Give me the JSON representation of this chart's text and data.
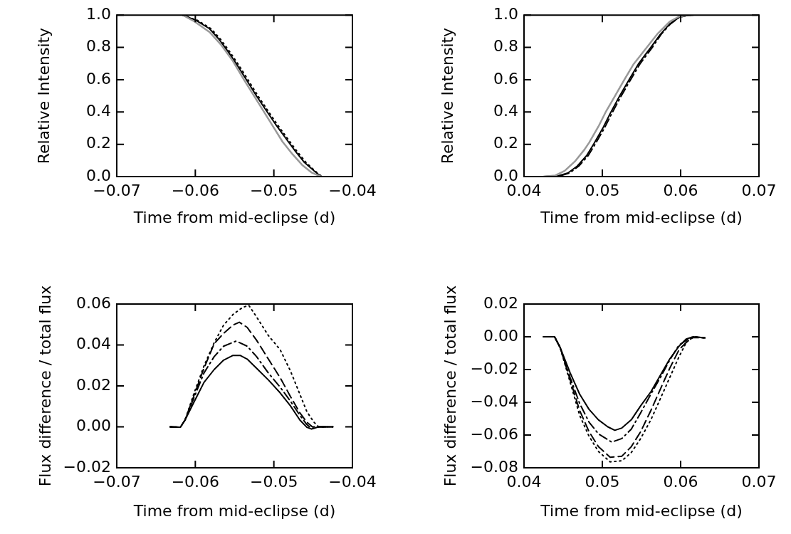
{
  "chart_data": [
    {
      "type": "line",
      "xlabel": "Time from mid-eclipse (d)",
      "ylabel": "Relative Intensity",
      "xlim": [
        -0.07,
        -0.04
      ],
      "ylim": [
        0,
        1
      ],
      "xticks": [
        {
          "value": -0.07,
          "label": "−0.07"
        },
        {
          "value": -0.06,
          "label": "−0.06"
        },
        {
          "value": -0.05,
          "label": "−0.05"
        },
        {
          "value": -0.04,
          "label": "−0.04"
        }
      ],
      "yticks": [
        {
          "value": 0,
          "label": "0.0"
        },
        {
          "value": 0.2,
          "label": "0.2"
        },
        {
          "value": 0.4,
          "label": "0.4"
        },
        {
          "value": 0.6,
          "label": "0.6"
        },
        {
          "value": 0.8,
          "label": "0.8"
        },
        {
          "value": 1,
          "label": "1.0"
        }
      ],
      "series": [
        {
          "color": "#999999",
          "line_style": "solid",
          "x": [
            -0.0616,
            -0.0601,
            -0.0582,
            -0.0567,
            -0.0552,
            -0.0538,
            -0.0525,
            -0.0513,
            -0.0501,
            -0.0489,
            -0.0476,
            -0.0464,
            -0.0452,
            -0.044
          ],
          "values": [
            1.0,
            0.96,
            0.895,
            0.815,
            0.714,
            0.599,
            0.498,
            0.404,
            0.31,
            0.216,
            0.137,
            0.072,
            0.025,
            0.0
          ]
        },
        {
          "color": "#000000",
          "line_style": "dotted",
          "x": [
            -0.0616,
            -0.0597,
            -0.058,
            -0.0568,
            -0.0556,
            -0.0544,
            -0.0532,
            -0.052,
            -0.0508,
            -0.0496,
            -0.0483,
            -0.0471,
            -0.0459,
            -0.0448,
            -0.0439,
            -0.0425
          ],
          "values": [
            1.0,
            0.967,
            0.916,
            0.851,
            0.772,
            0.685,
            0.592,
            0.498,
            0.411,
            0.325,
            0.238,
            0.159,
            0.087,
            0.036,
            0.0,
            0.0
          ]
        },
        {
          "color": "#000000",
          "line_style": "solid",
          "x": [
            -0.0616,
            -0.0599,
            -0.0582,
            -0.057,
            -0.0558,
            -0.0546,
            -0.0534,
            -0.0522,
            -0.051,
            -0.0498,
            -0.0485,
            -0.0473,
            -0.0461,
            -0.0449,
            -0.044,
            -0.0425
          ],
          "values": [
            1.0,
            0.967,
            0.916,
            0.851,
            0.772,
            0.685,
            0.592,
            0.498,
            0.411,
            0.325,
            0.238,
            0.159,
            0.087,
            0.036,
            0.0,
            0.0
          ]
        }
      ]
    },
    {
      "type": "line",
      "xlabel": "Time from mid-eclipse (d)",
      "ylabel": "Relative Intensity",
      "xlim": [
        0.04,
        0.07
      ],
      "ylim": [
        0,
        1
      ],
      "xticks": [
        {
          "value": 0.04,
          "label": "0.04"
        },
        {
          "value": 0.05,
          "label": "0.05"
        },
        {
          "value": 0.06,
          "label": "0.06"
        },
        {
          "value": 0.07,
          "label": "0.07"
        }
      ],
      "yticks": [
        {
          "value": 0,
          "label": "0.0"
        },
        {
          "value": 0.2,
          "label": "0.2"
        },
        {
          "value": 0.4,
          "label": "0.4"
        },
        {
          "value": 0.6,
          "label": "0.6"
        },
        {
          "value": 0.8,
          "label": "0.8"
        },
        {
          "value": 1,
          "label": "1.0"
        }
      ],
      "series": [
        {
          "color": "#999999",
          "line_style": "solid",
          "x": [
            0.0425,
            0.044,
            0.0452,
            0.0465,
            0.0477,
            0.0483,
            0.0495,
            0.0504,
            0.0516,
            0.0528,
            0.054,
            0.0557,
            0.0571,
            0.0586,
            0.0598,
            0.061
          ],
          "values": [
            0,
            0.007,
            0.036,
            0.094,
            0.166,
            0.209,
            0.31,
            0.397,
            0.498,
            0.599,
            0.697,
            0.801,
            0.887,
            0.96,
            0.991,
            1.0
          ]
        },
        {
          "color": "#000000",
          "line_style": "dashdot",
          "x": [
            0.0425,
            0.0445,
            0.0458,
            0.047,
            0.0482,
            0.0491,
            0.0503,
            0.0512,
            0.0524,
            0.0536,
            0.0548,
            0.0564,
            0.0575,
            0.0587,
            0.0598,
            0.061,
            0.0616
          ],
          "values": [
            0,
            0.003,
            0.022,
            0.065,
            0.13,
            0.202,
            0.303,
            0.39,
            0.498,
            0.599,
            0.697,
            0.801,
            0.88,
            0.945,
            0.986,
            1.0,
            1.0
          ]
        },
        {
          "color": "#000000",
          "line_style": "solid",
          "x": [
            0.0425,
            0.0443,
            0.0456,
            0.0468,
            0.048,
            0.0489,
            0.0501,
            0.051,
            0.0522,
            0.0534,
            0.0546,
            0.0562,
            0.0574,
            0.0586,
            0.0598,
            0.061,
            0.0616
          ],
          "values": [
            0,
            0.003,
            0.022,
            0.065,
            0.13,
            0.202,
            0.303,
            0.39,
            0.498,
            0.599,
            0.697,
            0.801,
            0.88,
            0.945,
            0.986,
            1.0,
            1.0
          ]
        }
      ]
    },
    {
      "type": "line",
      "xlabel": "Time from mid-eclipse (d)",
      "ylabel": "Flux difference / total flux",
      "xlim": [
        -0.07,
        -0.04
      ],
      "ylim": [
        -0.02,
        0.06
      ],
      "xticks": [
        {
          "value": -0.07,
          "label": "−0.07"
        },
        {
          "value": -0.06,
          "label": "−0.06"
        },
        {
          "value": -0.05,
          "label": "−0.05"
        },
        {
          "value": -0.04,
          "label": "−0.04"
        }
      ],
      "yticks": [
        {
          "value": -0.02,
          "label": "−0.02"
        },
        {
          "value": 0,
          "label": "0.00"
        },
        {
          "value": 0.02,
          "label": "0.02"
        },
        {
          "value": 0.04,
          "label": "0.04"
        },
        {
          "value": 0.06,
          "label": "0.06"
        }
      ],
      "series": [
        {
          "color": "#000000",
          "line_style": "solid",
          "x": [
            -0.0632,
            -0.0619,
            -0.0613,
            -0.0601,
            -0.0589,
            -0.0576,
            -0.0564,
            -0.0552,
            -0.0543,
            -0.0534,
            -0.0522,
            -0.0507,
            -0.0492,
            -0.0479,
            -0.0467,
            -0.0458,
            -0.0452,
            -0.0443,
            -0.0425
          ],
          "values": [
            0,
            -0.0002,
            0.0034,
            0.0126,
            0.0217,
            0.028,
            0.0326,
            0.0349,
            0.0349,
            0.0331,
            0.0286,
            0.0229,
            0.0166,
            0.0103,
            0.0034,
            -0.0002,
            -0.0011,
            0,
            0
          ]
        },
        {
          "color": "#000000",
          "line_style": "dashdot",
          "x": [
            -0.0632,
            -0.0619,
            -0.0613,
            -0.0601,
            -0.0589,
            -0.0576,
            -0.0564,
            -0.0548,
            -0.0534,
            -0.0522,
            -0.0507,
            -0.0492,
            -0.0479,
            -0.0467,
            -0.0458,
            -0.0452,
            -0.0443,
            -0.0425
          ],
          "values": [
            0,
            -0.0002,
            0.0034,
            0.0149,
            0.0263,
            0.0343,
            0.0394,
            0.0419,
            0.0394,
            0.0343,
            0.0263,
            0.0194,
            0.0126,
            0.0057,
            0.0011,
            -0.0009,
            0,
            0
          ]
        },
        {
          "color": "#000000",
          "line_style": "dashed",
          "x": [
            -0.0632,
            -0.0619,
            -0.0613,
            -0.0601,
            -0.0589,
            -0.0576,
            -0.0564,
            -0.0552,
            -0.0544,
            -0.0534,
            -0.0522,
            -0.0507,
            -0.0492,
            -0.0479,
            -0.0467,
            -0.0458,
            -0.0451,
            -0.0443,
            -0.0425
          ],
          "values": [
            0,
            -0.0002,
            0.0034,
            0.016,
            0.0286,
            0.0406,
            0.0457,
            0.0497,
            0.0511,
            0.0486,
            0.0423,
            0.0331,
            0.024,
            0.0149,
            0.0069,
            0.0023,
            0,
            0,
            0
          ]
        },
        {
          "color": "#000000",
          "line_style": "dotted",
          "x": [
            -0.0632,
            -0.0619,
            -0.0613,
            -0.0601,
            -0.0589,
            -0.0576,
            -0.0564,
            -0.0552,
            -0.054,
            -0.0532,
            -0.0522,
            -0.0507,
            -0.0492,
            -0.0479,
            -0.0467,
            -0.0458,
            -0.0449,
            -0.0443,
            -0.0425
          ],
          "values": [
            0,
            -0.0002,
            0.0034,
            0.0171,
            0.0297,
            0.0411,
            0.0497,
            0.0549,
            0.0583,
            0.0594,
            0.0537,
            0.0446,
            0.0377,
            0.0274,
            0.016,
            0.0074,
            0.0023,
            0,
            0
          ]
        }
      ]
    },
    {
      "type": "line",
      "xlabel": "Time from mid-eclipse (d)",
      "ylabel": "Flux difference / total flux",
      "xlim": [
        0.04,
        0.07
      ],
      "ylim": [
        -0.08,
        0.02
      ],
      "xticks": [
        {
          "value": 0.04,
          "label": "0.04"
        },
        {
          "value": 0.05,
          "label": "0.05"
        },
        {
          "value": 0.06,
          "label": "0.06"
        },
        {
          "value": 0.07,
          "label": "0.07"
        }
      ],
      "yticks": [
        {
          "value": -0.08,
          "label": "−0.08"
        },
        {
          "value": -0.06,
          "label": "−0.06"
        },
        {
          "value": -0.04,
          "label": "−0.04"
        },
        {
          "value": -0.02,
          "label": "−0.02"
        },
        {
          "value": 0,
          "label": "0.00"
        },
        {
          "value": 0.02,
          "label": "0.02"
        }
      ],
      "series": [
        {
          "color": "#000000",
          "line_style": "solid",
          "x": [
            0.0425,
            0.0439,
            0.0446,
            0.0459,
            0.0471,
            0.0483,
            0.0495,
            0.0507,
            0.0516,
            0.0525,
            0.0537,
            0.0549,
            0.0562,
            0.0574,
            0.0586,
            0.0598,
            0.0607,
            0.0616,
            0.0631
          ],
          "values": [
            0,
            0,
            -0.0064,
            -0.0221,
            -0.035,
            -0.0443,
            -0.0507,
            -0.055,
            -0.0571,
            -0.0557,
            -0.0507,
            -0.0421,
            -0.0336,
            -0.0236,
            -0.0136,
            -0.0057,
            -0.0014,
            0,
            -0.0007
          ]
        },
        {
          "color": "#000000",
          "line_style": "dashdot",
          "x": [
            0.0425,
            0.0439,
            0.0446,
            0.0459,
            0.0471,
            0.0483,
            0.0495,
            0.0512,
            0.0525,
            0.0537,
            0.0549,
            0.0562,
            0.0574,
            0.0586,
            0.0598,
            0.061,
            0.0616,
            0.0631
          ],
          "values": [
            0,
            0,
            -0.0064,
            -0.025,
            -0.0407,
            -0.0521,
            -0.0593,
            -0.0643,
            -0.0621,
            -0.0564,
            -0.0464,
            -0.035,
            -0.025,
            -0.0143,
            -0.005,
            -0.0014,
            0,
            -0.0007
          ]
        },
        {
          "color": "#000000",
          "line_style": "dashed",
          "x": [
            0.0425,
            0.0439,
            0.0446,
            0.0459,
            0.0471,
            0.0483,
            0.0495,
            0.051,
            0.0525,
            0.0537,
            0.0549,
            0.0562,
            0.0574,
            0.0586,
            0.0598,
            0.061,
            0.0616,
            0.0631
          ],
          "values": [
            0,
            0,
            -0.0064,
            -0.0264,
            -0.045,
            -0.0579,
            -0.0671,
            -0.0736,
            -0.0729,
            -0.0671,
            -0.0579,
            -0.045,
            -0.0321,
            -0.0193,
            -0.0079,
            -0.0021,
            -0.0004,
            -0.0007
          ]
        },
        {
          "color": "#000000",
          "line_style": "dotted",
          "x": [
            0.0425,
            0.0439,
            0.0446,
            0.0459,
            0.0471,
            0.0483,
            0.0495,
            0.051,
            0.0525,
            0.0537,
            0.0549,
            0.0562,
            0.0574,
            0.0586,
            0.0598,
            0.0607,
            0.0613,
            0.0619,
            0.0631
          ],
          "values": [
            0,
            0,
            -0.0064,
            -0.0279,
            -0.0479,
            -0.0607,
            -0.07,
            -0.0764,
            -0.0757,
            -0.0707,
            -0.0621,
            -0.0507,
            -0.0379,
            -0.025,
            -0.0121,
            -0.0036,
            -0.001,
            -0.0001,
            -0.0007
          ]
        }
      ]
    }
  ]
}
